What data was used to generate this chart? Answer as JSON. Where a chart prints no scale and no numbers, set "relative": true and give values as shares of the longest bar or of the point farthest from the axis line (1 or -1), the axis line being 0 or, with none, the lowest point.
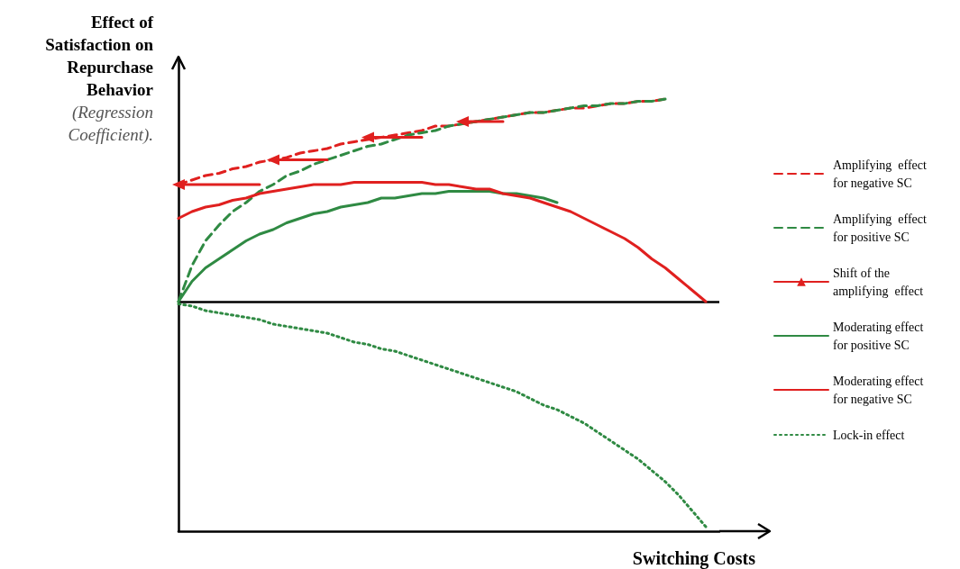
{
  "chart_data": {
    "type": "line",
    "relative": true,
    "xlabel": "Switching Costs",
    "ylabel": "Effect of Satisfaction on Repurchase Behavior (Regression Coefficient).",
    "legend": "right",
    "tick_labels": false,
    "categories": [
      null,
      null,
      null,
      null,
      null,
      null,
      null,
      null,
      null,
      null,
      null,
      null,
      null,
      null,
      null,
      null,
      null,
      null,
      null,
      null,
      null,
      null,
      null,
      null,
      null,
      null,
      null,
      null,
      null,
      null,
      null,
      null,
      null,
      null,
      null,
      null,
      null,
      null,
      null,
      null,
      null
    ],
    "ref_lines": [
      {
        "axis": "y",
        "value": 0,
        "color": "#000000"
      }
    ],
    "series": [
      {
        "name": "Amplifying  effect for negative SC",
        "color": "#e0201f",
        "line_style": "dashed",
        "values": [
          0.52,
          0.54,
          0.56,
          0.57,
          0.59,
          0.6,
          0.62,
          0.63,
          0.64,
          0.66,
          0.67,
          0.68,
          0.7,
          0.71,
          0.72,
          0.73,
          0.74,
          0.75,
          0.76,
          0.78,
          0.78,
          0.79,
          0.8,
          0.81,
          0.82,
          0.83,
          0.84,
          0.84,
          0.85,
          0.86,
          0.86,
          0.87,
          0.88,
          0.88,
          0.89,
          0.89,
          0.9,
          null,
          null,
          null,
          null
        ]
      },
      {
        "name": "Amplifying  effect for positive SC",
        "color": "#2f8a43",
        "line_style": "dashed",
        "values": [
          0,
          0.16,
          0.27,
          0.34,
          0.4,
          0.44,
          0.49,
          0.52,
          0.56,
          0.58,
          0.61,
          0.63,
          0.65,
          0.67,
          0.69,
          0.7,
          0.72,
          0.74,
          0.75,
          0.76,
          0.78,
          0.79,
          0.8,
          0.81,
          0.82,
          0.83,
          0.84,
          0.84,
          0.85,
          0.86,
          0.87,
          0.87,
          0.88,
          0.88,
          0.89,
          0.89,
          0.9,
          null,
          null,
          null,
          null
        ]
      },
      {
        "name": "Shift of the amplifying  effect",
        "color": "#e0201f",
        "line_style": "solid",
        "values": [
          0.52,
          0.52,
          0.52,
          0.52,
          0.52,
          0.52,
          0.52,
          null,
          null,
          null,
          null,
          null,
          null,
          null,
          0.73,
          0.73,
          0.73,
          0.73,
          0.73,
          null,
          null,
          null,
          null,
          null,
          null,
          null,
          null,
          null,
          null,
          null,
          null,
          null,
          null,
          null,
          null,
          null,
          null,
          null,
          null,
          null,
          null
        ]
      },
      {
        "name": "Moderating effect for positive SC",
        "color": "#2f8a43",
        "line_style": "solid",
        "values": [
          0,
          0.09,
          0.15,
          0.19,
          0.23,
          0.27,
          0.3,
          0.32,
          0.35,
          0.37,
          0.39,
          0.4,
          0.42,
          0.43,
          0.44,
          0.46,
          0.46,
          0.47,
          0.48,
          0.48,
          0.49,
          0.49,
          0.49,
          0.49,
          0.48,
          0.48,
          0.47,
          0.46,
          0.44,
          null,
          null,
          null,
          null,
          null,
          null,
          null,
          null,
          null,
          null,
          null,
          null
        ]
      },
      {
        "name": "Moderating effect for negative SC",
        "color": "#e0201f",
        "line_style": "solid",
        "values": [
          0.37,
          0.4,
          0.42,
          0.43,
          0.45,
          0.46,
          0.48,
          0.49,
          0.5,
          0.51,
          0.52,
          0.52,
          0.52,
          0.53,
          0.53,
          0.53,
          0.53,
          0.53,
          0.53,
          0.52,
          0.52,
          0.51,
          0.5,
          0.5,
          0.48,
          0.47,
          0.46,
          0.44,
          0.42,
          0.4,
          0.37,
          0.34,
          0.31,
          0.28,
          0.24,
          0.19,
          0.15,
          0.1,
          0.05,
          0,
          null
        ]
      },
      {
        "name": "Lock-in effect",
        "color": "#2f8a43",
        "line_style": "dotted",
        "values": [
          -0.01,
          -0.02,
          -0.04,
          -0.05,
          -0.06,
          -0.07,
          -0.08,
          -0.1,
          -0.11,
          -0.12,
          -0.13,
          -0.14,
          -0.16,
          -0.18,
          -0.19,
          -0.21,
          -0.22,
          -0.24,
          -0.26,
          -0.28,
          -0.3,
          -0.32,
          -0.34,
          -0.36,
          -0.38,
          -0.4,
          -0.43,
          -0.46,
          -0.48,
          -0.51,
          -0.54,
          -0.58,
          -0.62,
          -0.66,
          -0.7,
          -0.75,
          -0.8,
          -0.86,
          -0.93,
          -1,
          null
        ]
      },
      {
        "color": "#e0201f",
        "line_style": "solid",
        "values": [
          null,
          null,
          null,
          null,
          null,
          null,
          null,
          0.63,
          0.63,
          0.63,
          0.63,
          0.63,
          null,
          null,
          null,
          null,
          null,
          null,
          null,
          null,
          null,
          0.8,
          0.8,
          0.8,
          0.8,
          null,
          null,
          null,
          null,
          null,
          null,
          null,
          null,
          null,
          null,
          null,
          null,
          null,
          null,
          null,
          null
        ]
      }
    ]
  }
}
